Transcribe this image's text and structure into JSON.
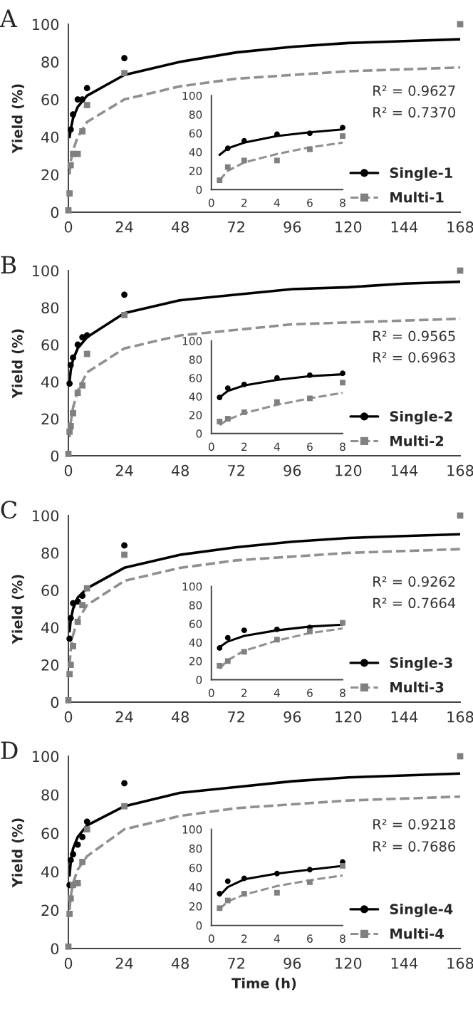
{
  "chart_data": [
    {
      "type": "scatter",
      "title": "A",
      "ylabel": "Yield (%)",
      "xlim": [
        0,
        168
      ],
      "ylim": [
        0,
        100
      ],
      "xticks": [
        0,
        24,
        48,
        72,
        96,
        120,
        144,
        168
      ],
      "yticks": [
        0,
        20,
        40,
        60,
        80,
        100
      ],
      "legend": "bottom right",
      "annotations": [
        "R² = 0.9627",
        "R² = 0.7370"
      ],
      "series": [
        {
          "name": "Single-1",
          "color": "#000000",
          "marker": "circle",
          "line_style": "solid",
          "x": [
            1,
            2,
            4,
            6,
            8,
            24
          ],
          "values": [
            44,
            52,
            60,
            60,
            66,
            82
          ]
        },
        {
          "name": "Multi-1",
          "color": "#808080",
          "marker": "square",
          "line_style": "dashed",
          "x": [
            0,
            0.5,
            1,
            2,
            4,
            6,
            8,
            24,
            168
          ],
          "values": [
            1,
            10,
            25,
            31,
            31,
            43,
            57,
            74,
            100
          ]
        },
        {
          "type": "line",
          "color": "#000000",
          "line_style": "solid",
          "x": [
            0.5,
            1,
            2,
            4,
            8,
            24,
            48,
            72,
            96,
            120,
            144,
            168
          ],
          "values": [
            40,
            44,
            50,
            56,
            62,
            73,
            80,
            85,
            88,
            90,
            91,
            92
          ]
        },
        {
          "type": "line",
          "color": "#909090",
          "line_style": "dashed",
          "x": [
            0.5,
            1,
            2,
            4,
            8,
            24,
            48,
            72,
            96,
            120,
            144,
            168
          ],
          "values": [
            20,
            27,
            33,
            40,
            48,
            60,
            67,
            71,
            73,
            75,
            76,
            77
          ]
        }
      ]
    },
    {
      "type": "scatter",
      "xlim": [
        0,
        8
      ],
      "ylim": [
        0,
        100
      ],
      "xticks": [
        0,
        2,
        4,
        6,
        8
      ],
      "yticks": [
        0,
        20,
        40,
        60,
        80,
        100
      ],
      "series": [
        {
          "color": "#000000",
          "marker": "circle",
          "x": [
            1,
            2,
            4,
            6,
            8
          ],
          "values": [
            44,
            52,
            59,
            60,
            66
          ]
        },
        {
          "color": "#808080",
          "marker": "square",
          "x": [
            0.5,
            1,
            2,
            4,
            6,
            8
          ],
          "values": [
            10,
            24,
            31,
            31,
            43,
            57
          ]
        },
        {
          "type": "line",
          "color": "#000000",
          "line_style": "solid",
          "x": [
            0.5,
            1,
            2,
            4,
            6,
            8
          ],
          "values": [
            37,
            44,
            50,
            57,
            61,
            64
          ]
        },
        {
          "type": "line",
          "color": "#909090",
          "line_style": "dashed",
          "x": [
            0.5,
            1,
            2,
            4,
            6,
            8
          ],
          "values": [
            10,
            20,
            29,
            38,
            45,
            50
          ]
        }
      ]
    },
    {
      "type": "scatter",
      "title": "B",
      "ylabel": "Yield (%)",
      "xlim": [
        0,
        168
      ],
      "ylim": [
        0,
        100
      ],
      "xticks": [
        0,
        24,
        48,
        72,
        96,
        120,
        144,
        168
      ],
      "yticks": [
        0,
        20,
        40,
        60,
        80,
        100
      ],
      "legend": "bottom right",
      "annotations": [
        "R² = 0.9565",
        "R² = 0.6963"
      ],
      "series": [
        {
          "name": "Single-2",
          "color": "#000000",
          "marker": "circle",
          "line_style": "solid",
          "x": [
            0.5,
            1,
            2,
            4,
            6,
            8,
            24
          ],
          "values": [
            39,
            49,
            53,
            60,
            64,
            65,
            87
          ]
        },
        {
          "name": "Multi-2",
          "color": "#808080",
          "marker": "square",
          "line_style": "dashed",
          "x": [
            0,
            0.5,
            1,
            2,
            4,
            6,
            8,
            24,
            168
          ],
          "values": [
            1,
            13,
            16,
            23,
            34,
            38,
            55,
            76,
            100
          ]
        },
        {
          "type": "line",
          "color": "#000000",
          "line_style": "solid",
          "x": [
            0.5,
            1,
            2,
            4,
            8,
            24,
            48,
            72,
            96,
            120,
            144,
            168
          ],
          "values": [
            40,
            46,
            52,
            58,
            64,
            77,
            84,
            87,
            90,
            91,
            93,
            94
          ]
        },
        {
          "type": "line",
          "color": "#909090",
          "line_style": "dashed",
          "x": [
            0.5,
            1,
            2,
            4,
            8,
            24,
            48,
            72,
            96,
            120,
            144,
            168
          ],
          "values": [
            10,
            18,
            26,
            35,
            45,
            58,
            65,
            68,
            71,
            72,
            73,
            74
          ]
        }
      ]
    },
    {
      "type": "scatter",
      "xlim": [
        0,
        8
      ],
      "ylim": [
        0,
        100
      ],
      "xticks": [
        0,
        2,
        4,
        6,
        8
      ],
      "yticks": [
        0,
        20,
        40,
        60,
        80,
        100
      ],
      "series": [
        {
          "color": "#000000",
          "marker": "circle",
          "x": [
            0.5,
            1,
            2,
            4,
            6,
            8
          ],
          "values": [
            39,
            49,
            53,
            60,
            63,
            65
          ]
        },
        {
          "color": "#808080",
          "marker": "square",
          "x": [
            0.5,
            1,
            2,
            4,
            6,
            8
          ],
          "values": [
            13,
            16,
            23,
            34,
            38,
            55
          ]
        },
        {
          "type": "line",
          "color": "#000000",
          "line_style": "solid",
          "x": [
            0.5,
            1,
            2,
            4,
            6,
            8
          ],
          "values": [
            39,
            46,
            52,
            58,
            62,
            64
          ]
        },
        {
          "type": "line",
          "color": "#909090",
          "line_style": "dashed",
          "x": [
            0.5,
            1,
            2,
            4,
            6,
            8
          ],
          "values": [
            9,
            15,
            22,
            31,
            38,
            44
          ]
        }
      ]
    },
    {
      "type": "scatter",
      "title": "C",
      "ylabel": "Yield (%)",
      "xlim": [
        0,
        168
      ],
      "ylim": [
        0,
        100
      ],
      "xticks": [
        0,
        24,
        48,
        72,
        96,
        120,
        144,
        168
      ],
      "yticks": [
        0,
        20,
        40,
        60,
        80,
        100
      ],
      "legend": "bottom right",
      "annotations": [
        "R² = 0.9262",
        "R² = 0.7664"
      ],
      "series": [
        {
          "name": "Single-3",
          "color": "#000000",
          "marker": "circle",
          "line_style": "solid",
          "x": [
            0.5,
            1,
            2,
            4,
            6,
            24
          ],
          "values": [
            34,
            45,
            53,
            54,
            57,
            84
          ]
        },
        {
          "name": "Multi-3",
          "color": "#808080",
          "marker": "square",
          "line_style": "dashed",
          "x": [
            0,
            0.5,
            1,
            2,
            4,
            6,
            8,
            24,
            168
          ],
          "values": [
            1,
            15,
            20,
            30,
            43,
            52,
            61,
            79,
            100
          ]
        },
        {
          "type": "line",
          "color": "#000000",
          "line_style": "solid",
          "x": [
            0.5,
            1,
            2,
            4,
            8,
            24,
            48,
            72,
            96,
            120,
            144,
            168
          ],
          "values": [
            38,
            44,
            50,
            56,
            61,
            72,
            79,
            83,
            86,
            88,
            89,
            90
          ]
        },
        {
          "type": "line",
          "color": "#909090",
          "line_style": "dashed",
          "x": [
            0.5,
            1,
            2,
            4,
            8,
            24,
            48,
            72,
            96,
            120,
            144,
            168
          ],
          "values": [
            20,
            28,
            36,
            44,
            52,
            65,
            72,
            76,
            78,
            80,
            81,
            82
          ]
        }
      ]
    },
    {
      "type": "scatter",
      "xlim": [
        0,
        8
      ],
      "ylim": [
        0,
        100
      ],
      "xticks": [
        0,
        2,
        4,
        6,
        8
      ],
      "yticks": [
        0,
        20,
        40,
        60,
        80,
        100
      ],
      "series": [
        {
          "color": "#000000",
          "marker": "circle",
          "x": [
            0.5,
            1,
            2,
            4,
            6
          ],
          "values": [
            34,
            45,
            53,
            54,
            56
          ]
        },
        {
          "color": "#808080",
          "marker": "square",
          "x": [
            0.5,
            1,
            2,
            4,
            6,
            8
          ],
          "values": [
            15,
            20,
            30,
            43,
            52,
            61
          ]
        },
        {
          "type": "line",
          "color": "#000000",
          "line_style": "solid",
          "x": [
            0.5,
            1,
            2,
            4,
            6,
            8
          ],
          "values": [
            35,
            41,
            47,
            53,
            57,
            59
          ]
        },
        {
          "type": "line",
          "color": "#909090",
          "line_style": "dashed",
          "x": [
            0.5,
            1,
            2,
            4,
            6,
            8
          ],
          "values": [
            12,
            21,
            31,
            42,
            50,
            55
          ]
        }
      ]
    },
    {
      "type": "scatter",
      "title": "D",
      "ylabel": "Yield (%)",
      "xlabel": "Time (h)",
      "xlim": [
        0,
        168
      ],
      "ylim": [
        0,
        100
      ],
      "xticks": [
        0,
        24,
        48,
        72,
        96,
        120,
        144,
        168
      ],
      "yticks": [
        0,
        20,
        40,
        60,
        80,
        100
      ],
      "legend": "bottom right",
      "annotations": [
        "R² = 0.9218",
        "R² = 0.7686"
      ],
      "series": [
        {
          "name": "Single-4",
          "color": "#000000",
          "marker": "circle",
          "line_style": "solid",
          "x": [
            0.5,
            1,
            2,
            4,
            6,
            8,
            24
          ],
          "values": [
            33,
            46,
            49,
            54,
            58,
            66,
            86
          ]
        },
        {
          "name": "Multi-4",
          "color": "#808080",
          "marker": "square",
          "line_style": "dashed",
          "x": [
            0,
            0.5,
            1,
            2,
            4,
            6,
            8,
            24,
            168
          ],
          "values": [
            1,
            18,
            26,
            33,
            34,
            45,
            62,
            74,
            100
          ]
        },
        {
          "type": "line",
          "color": "#000000",
          "line_style": "solid",
          "x": [
            0.5,
            1,
            2,
            4,
            8,
            24,
            48,
            72,
            96,
            120,
            144,
            168
          ],
          "values": [
            38,
            45,
            52,
            58,
            64,
            74,
            81,
            84,
            87,
            89,
            90,
            91
          ]
        },
        {
          "type": "line",
          "color": "#909090",
          "line_style": "dashed",
          "x": [
            0.5,
            1,
            2,
            4,
            8,
            24,
            48,
            72,
            96,
            120,
            144,
            168
          ],
          "values": [
            20,
            27,
            34,
            41,
            48,
            62,
            69,
            73,
            75,
            77,
            78,
            79
          ]
        }
      ]
    },
    {
      "type": "scatter",
      "xlim": [
        0,
        8
      ],
      "ylim": [
        0,
        100
      ],
      "xticks": [
        0,
        2,
        4,
        6,
        8
      ],
      "yticks": [
        0,
        20,
        40,
        60,
        80,
        100
      ],
      "series": [
        {
          "color": "#000000",
          "marker": "circle",
          "x": [
            0.5,
            1,
            2,
            4,
            6,
            8
          ],
          "values": [
            33,
            46,
            49,
            54,
            58,
            66
          ]
        },
        {
          "color": "#808080",
          "marker": "square",
          "x": [
            0.5,
            1,
            2,
            4,
            6,
            8
          ],
          "values": [
            18,
            26,
            33,
            34,
            45,
            62
          ]
        },
        {
          "type": "line",
          "color": "#000000",
          "line_style": "solid",
          "x": [
            0.5,
            1,
            2,
            4,
            6,
            8
          ],
          "values": [
            31,
            40,
            48,
            54,
            58,
            62
          ]
        },
        {
          "type": "line",
          "color": "#909090",
          "line_style": "dashed",
          "x": [
            0.5,
            1,
            2,
            4,
            6,
            8
          ],
          "values": [
            17,
            25,
            32,
            41,
            47,
            52
          ]
        }
      ]
    }
  ]
}
